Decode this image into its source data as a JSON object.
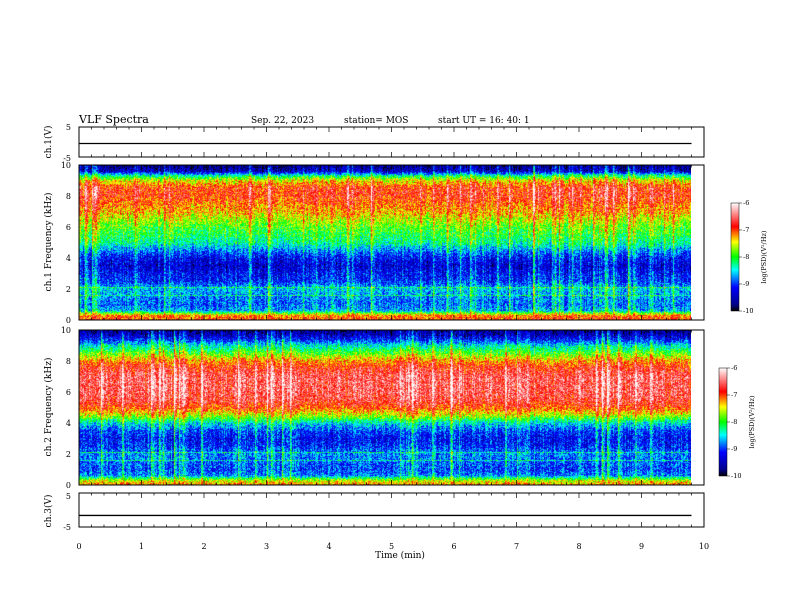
{
  "header": {
    "title": "VLF Spectra",
    "date": "Sep. 22, 2023",
    "station": "station= MOS",
    "start_ut": "start  UT =   16: 40: 1"
  },
  "chart_data": [
    {
      "type": "line",
      "panel": "ch1-voltage",
      "ylabel": "ch.1(V)",
      "ylim": [
        -5,
        5
      ],
      "y_tick_labels": [
        "5",
        "-5"
      ],
      "xlim": [
        0,
        10
      ],
      "series": [
        {
          "x": [
            0,
            9.8
          ],
          "values": [
            -0.5,
            -0.5
          ]
        }
      ]
    },
    {
      "type": "heatmap",
      "panel": "ch1-spectrogram",
      "ylabel": "ch.1 Frequency (kHz)",
      "ylim": [
        0,
        10
      ],
      "y_tick_labels": [
        "0",
        "2",
        "4",
        "6",
        "8",
        "10"
      ],
      "xlim": [
        0,
        10
      ],
      "x_data_end": 9.8,
      "color_scale": {
        "label": "log(PSD)(V²/Hz)",
        "range": [
          -10,
          -6
        ],
        "tick_labels": [
          "-6",
          "-7",
          "-8",
          "-9",
          "-10"
        ]
      },
      "profile": {
        "freq_khz": [
          0,
          0.3,
          0.6,
          1,
          1.5,
          2,
          2.5,
          3,
          3.5,
          4,
          4.5,
          5,
          5.5,
          6,
          6.5,
          7,
          7.5,
          8,
          8.5,
          9,
          9.3,
          9.6,
          10
        ],
        "log_psd": [
          -7.0,
          -7.2,
          -8.7,
          -8.9,
          -8.8,
          -8.6,
          -9.1,
          -9.2,
          -9.4,
          -9.2,
          -8.8,
          -8.3,
          -8.1,
          -7.9,
          -7.6,
          -7.3,
          -7.1,
          -6.9,
          -6.9,
          -7.5,
          -8.3,
          -9.5,
          -9.7
        ]
      }
    },
    {
      "type": "heatmap",
      "panel": "ch2-spectrogram",
      "ylabel": "ch.2 Frequency (kHz)",
      "ylim": [
        0,
        10
      ],
      "y_tick_labels": [
        "0",
        "2",
        "4",
        "6",
        "8",
        "10"
      ],
      "xlim": [
        0,
        10
      ],
      "x_data_end": 9.8,
      "color_scale": {
        "label": "log(PSD)(V²/Hz)",
        "range": [
          -10,
          -6
        ],
        "tick_labels": [
          "-6",
          "-7",
          "-8",
          "-9",
          "-10"
        ]
      },
      "profile": {
        "freq_khz": [
          0,
          0.3,
          0.6,
          1,
          1.5,
          2,
          2.5,
          3,
          3.5,
          4,
          4.5,
          5,
          5.5,
          6,
          6.5,
          7,
          7.5,
          8,
          8.5,
          9,
          9.3,
          9.6,
          10
        ],
        "log_psd": [
          -7.2,
          -7.6,
          -8.8,
          -9.0,
          -8.9,
          -8.8,
          -9.1,
          -9.2,
          -9.0,
          -8.5,
          -7.6,
          -7.0,
          -6.7,
          -6.6,
          -6.6,
          -6.6,
          -6.8,
          -7.2,
          -7.9,
          -8.5,
          -9.0,
          -9.4,
          -9.7
        ]
      }
    },
    {
      "type": "line",
      "panel": "ch3-voltage",
      "ylabel": "ch.3(V)",
      "ylim": [
        -5,
        5
      ],
      "y_tick_labels": [
        "5",
        "-5"
      ],
      "xlim": [
        0,
        10
      ],
      "series": [
        {
          "x": [
            0,
            9.8
          ],
          "values": [
            -1.6,
            -1.6
          ]
        }
      ]
    }
  ],
  "x_axis": {
    "label": "Time (min)",
    "tick_labels": [
      "0",
      "1",
      "2",
      "3",
      "4",
      "5",
      "6",
      "7",
      "8",
      "9",
      "10"
    ]
  },
  "colors": {
    "stops": [
      "#000000",
      "#00008b",
      "#0000ff",
      "#00ffff",
      "#00ff00",
      "#ffff00",
      "#ff0000",
      "#ffffff"
    ]
  }
}
